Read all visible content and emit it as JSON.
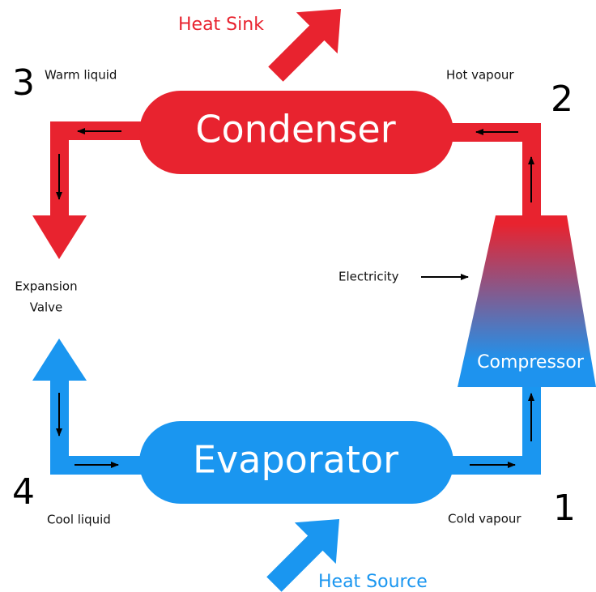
{
  "heat_sink": "Heat Sink",
  "heat_source": "Heat Source",
  "components": {
    "condenser": "Condenser",
    "evaporator": "Evaporator",
    "compressor": "Compressor",
    "expansion_valve": [
      "Expansion",
      "Valve"
    ],
    "electricity": "Electricity"
  },
  "states": [
    {
      "number": "1",
      "label": "Cold vapour"
    },
    {
      "number": "2",
      "label": "Hot vapour"
    },
    {
      "number": "3",
      "label": "Warm liquid"
    },
    {
      "number": "4",
      "label": "Cool liquid"
    }
  ]
}
